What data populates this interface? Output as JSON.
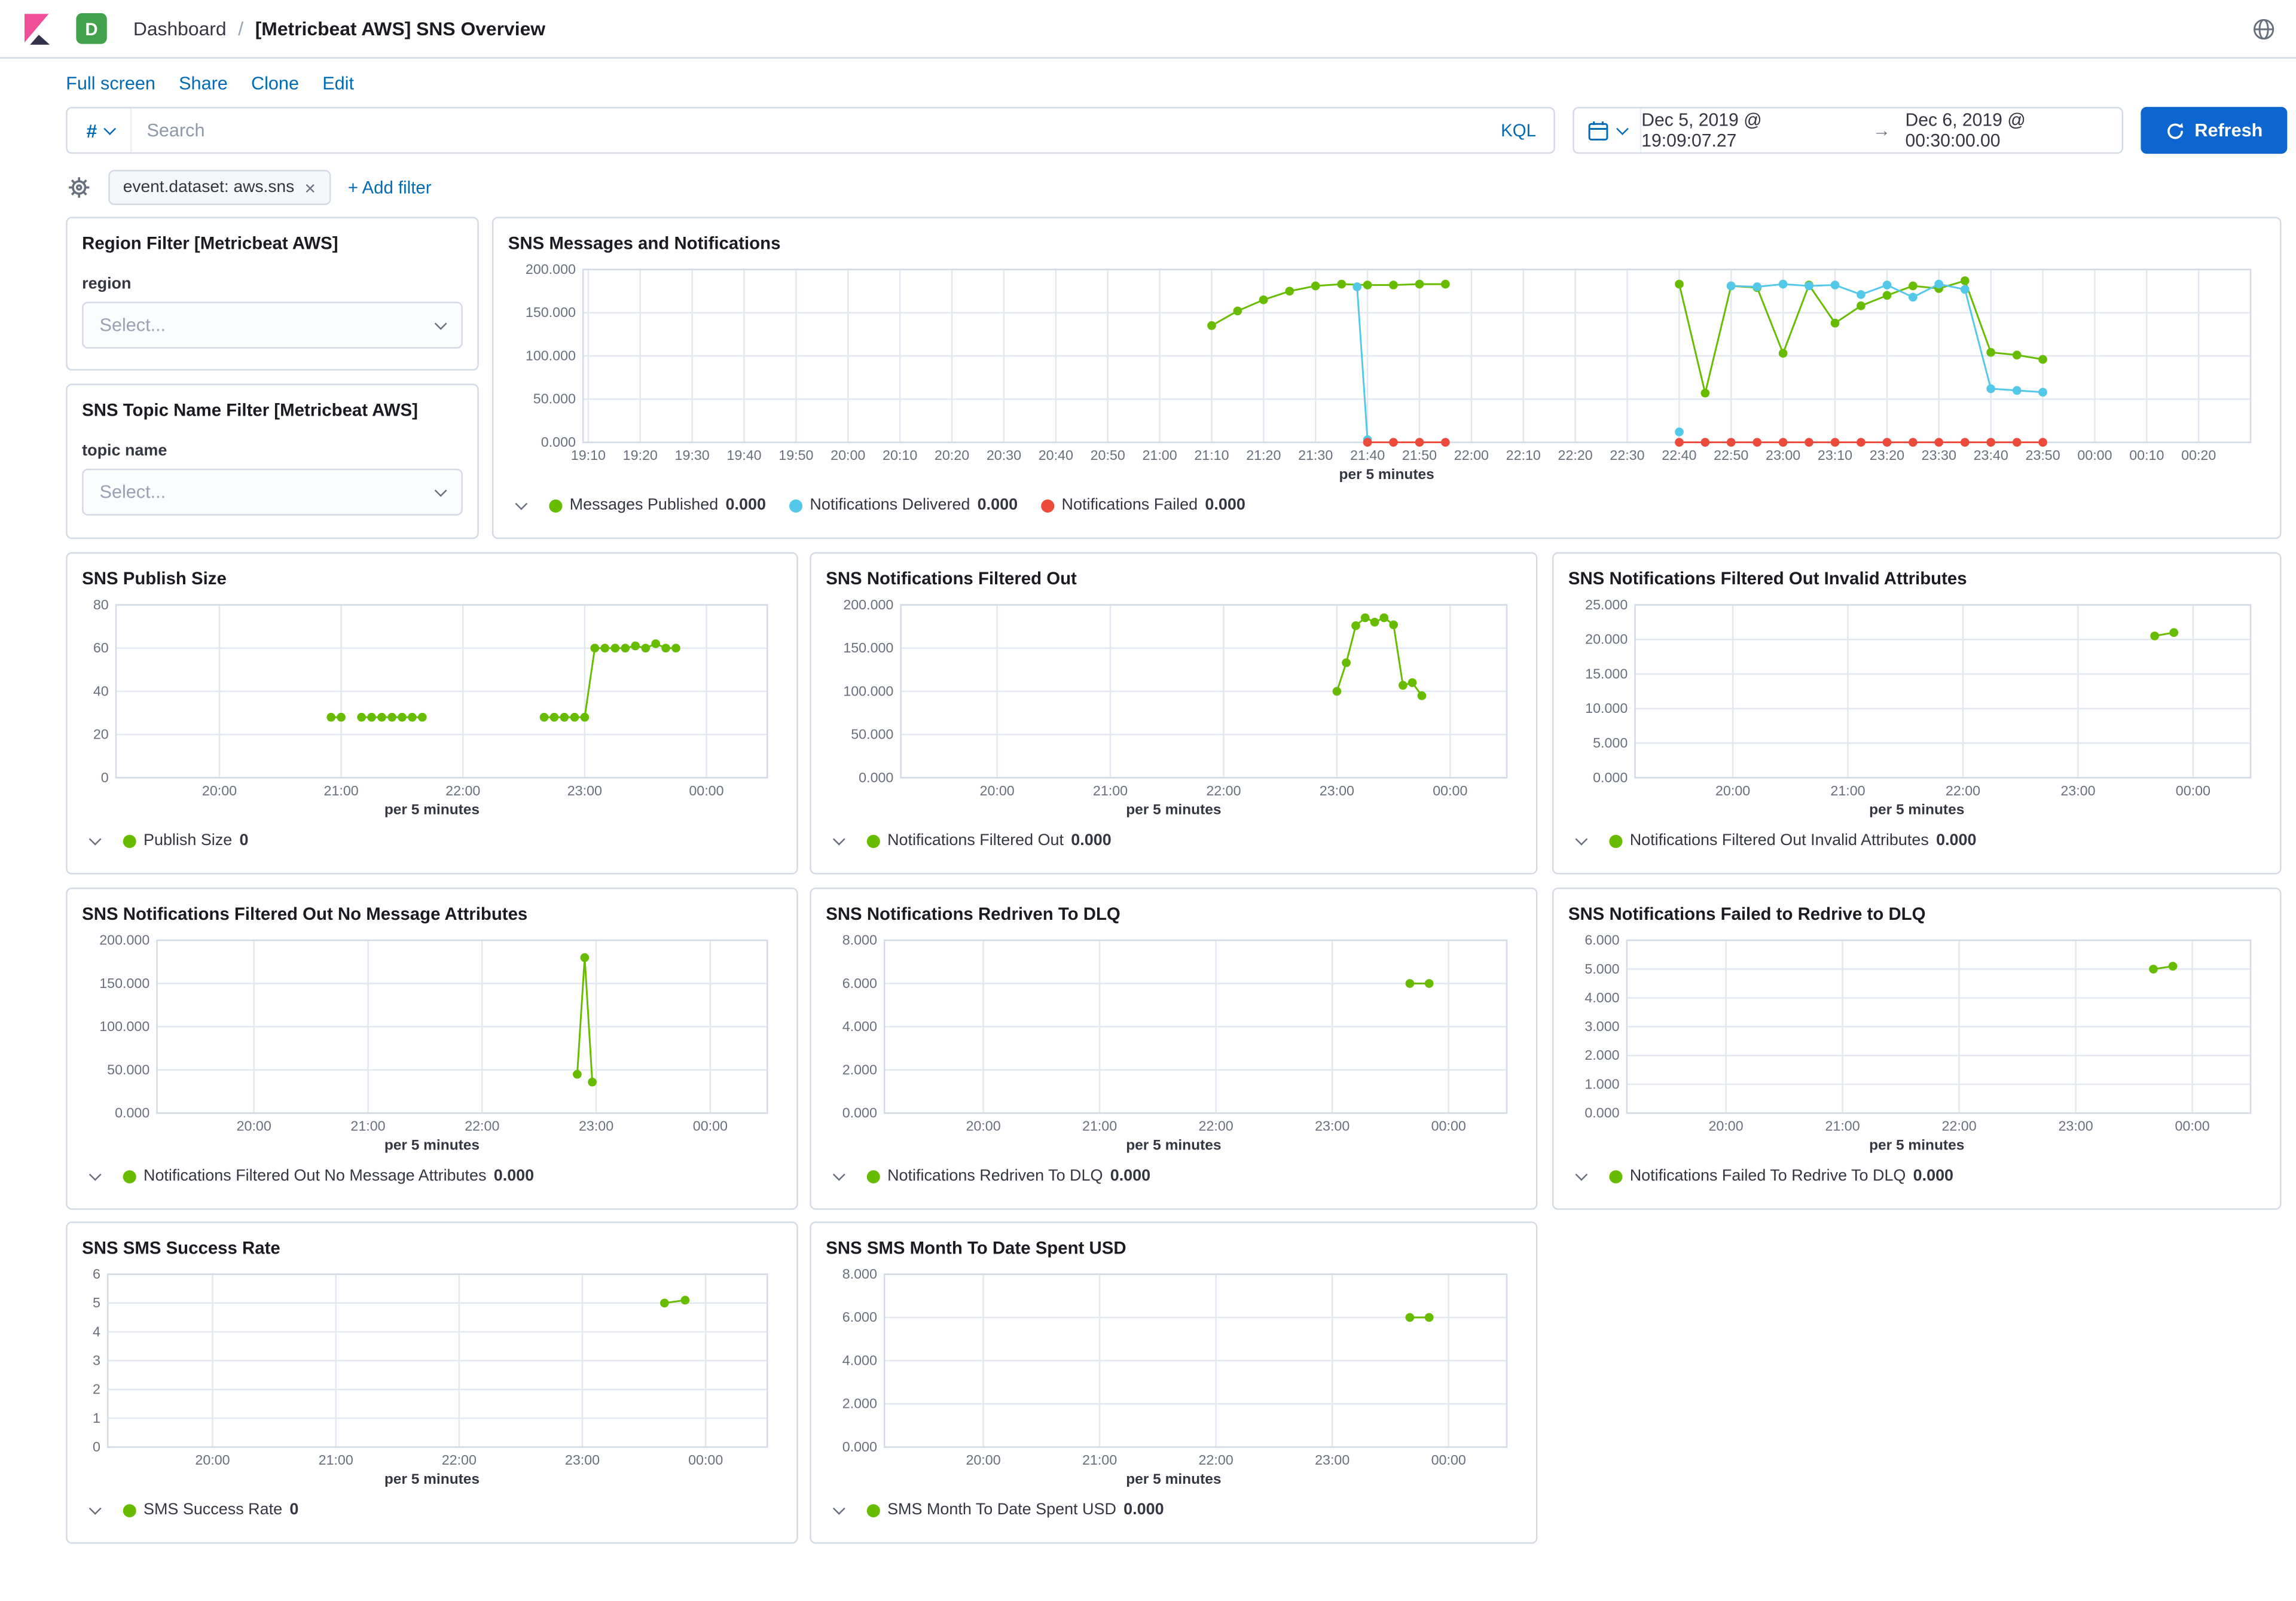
{
  "header": {
    "space_badge": "D",
    "breadcrumb_section": "Dashboard",
    "breadcrumb_separator": "/",
    "title": "[Metricbeat AWS] SNS Overview"
  },
  "nav_links": [
    "Full screen",
    "Share",
    "Clone",
    "Edit"
  ],
  "query_bar": {
    "filter_set_symbol": "#",
    "search_placeholder": "Search",
    "kql_label": "KQL",
    "date_start": "Dec 5, 2019 @ 19:09:07.27",
    "date_arrow": "→",
    "date_end": "Dec 6, 2019 @ 00:30:00.00",
    "refresh_label": "Refresh"
  },
  "filter_bar": {
    "pill": "event.dataset: aws.sns",
    "pill_close": "×",
    "add_filter": "+ Add filter"
  },
  "filter_panels": [
    {
      "title": "Region Filter [Metricbeat AWS]",
      "field_label": "region",
      "placeholder": "Select..."
    },
    {
      "title": "SNS Topic Name Filter [Metricbeat AWS]",
      "field_label": "topic name",
      "placeholder": "Select..."
    }
  ],
  "colors": {
    "link_blue": "#006BB4",
    "primary_button_blue": "#0D65D0",
    "series_green": "#68BC00",
    "series_blue": "#54C8E8",
    "series_red": "#EC4A3B",
    "space_badge_green": "#42A14D",
    "logo_pink": "#F04E98"
  },
  "chart_data": [
    {
      "title": "SNS Messages and Notifications",
      "type": "line",
      "xlabel": "per 5 minutes",
      "x_domain": [
        "19:09",
        "00:30"
      ],
      "x_ticks": [
        "19:10",
        "19:20",
        "19:30",
        "19:40",
        "19:50",
        "20:00",
        "20:10",
        "20:20",
        "20:30",
        "20:40",
        "20:50",
        "21:00",
        "21:10",
        "21:20",
        "21:30",
        "21:40",
        "21:50",
        "22:00",
        "22:10",
        "22:20",
        "22:30",
        "22:40",
        "22:50",
        "23:00",
        "23:10",
        "23:20",
        "23:30",
        "23:40",
        "23:50",
        "00:00",
        "00:10",
        "00:20"
      ],
      "ylim": [
        0,
        200
      ],
      "y_ticks": [
        "0.000",
        "50.000",
        "100.000",
        "150.000",
        "200.000"
      ],
      "legend_position": "bottom",
      "series": [
        {
          "name": "Messages Published",
          "value_label": "0.000",
          "color": "#68BC00",
          "points": [
            [
              "21:10",
              135
            ],
            [
              "21:15",
              152
            ],
            [
              "21:20",
              165
            ],
            [
              "21:25",
              175
            ],
            [
              "21:30",
              181
            ],
            [
              "21:35",
              183
            ],
            [
              "21:40",
              182
            ],
            [
              "21:45",
              182
            ],
            [
              "21:50",
              183
            ],
            [
              "21:55",
              183
            ],
            null,
            [
              "22:40",
              183
            ],
            [
              "22:45",
              57
            ],
            [
              "22:50",
              181
            ],
            [
              "22:55",
              179
            ],
            [
              "23:00",
              103
            ],
            [
              "23:05",
              182
            ],
            [
              "23:10",
              138
            ],
            [
              "23:15",
              158
            ],
            [
              "23:20",
              170
            ],
            [
              "23:25",
              181
            ],
            [
              "23:30",
              178
            ],
            [
              "23:35",
              187
            ],
            [
              "23:40",
              104
            ],
            [
              "23:45",
              101
            ],
            [
              "23:50",
              96
            ]
          ]
        },
        {
          "name": "Notifications Delivered",
          "value_label": "0.000",
          "color": "#54C8E8",
          "points": [
            [
              "21:38",
              180
            ],
            [
              "21:40",
              3
            ],
            null,
            [
              "22:40",
              12
            ],
            null,
            [
              "22:50",
              181
            ],
            [
              "22:55",
              180
            ],
            [
              "23:00",
              183
            ],
            [
              "23:05",
              181
            ],
            [
              "23:10",
              182
            ],
            [
              "23:15",
              171
            ],
            [
              "23:20",
              182
            ],
            [
              "23:25",
              168
            ],
            [
              "23:30",
              183
            ],
            [
              "23:35",
              177
            ],
            [
              "23:40",
              62
            ],
            [
              "23:45",
              60
            ],
            [
              "23:50",
              58
            ]
          ]
        },
        {
          "name": "Notifications Failed",
          "value_label": "0.000",
          "color": "#EC4A3B",
          "points": [
            [
              "21:40",
              0
            ],
            [
              "21:45",
              0
            ],
            [
              "21:50",
              0
            ],
            [
              "21:55",
              0
            ],
            null,
            [
              "22:40",
              0
            ],
            [
              "22:45",
              0
            ],
            [
              "22:50",
              0
            ],
            [
              "22:55",
              0
            ],
            [
              "23:00",
              0
            ],
            [
              "23:05",
              0
            ],
            [
              "23:10",
              0
            ],
            [
              "23:15",
              0
            ],
            [
              "23:20",
              0
            ],
            [
              "23:25",
              0
            ],
            [
              "23:30",
              0
            ],
            [
              "23:35",
              0
            ],
            [
              "23:40",
              0
            ],
            [
              "23:45",
              0
            ],
            [
              "23:50",
              0
            ]
          ]
        }
      ]
    },
    {
      "title": "SNS Publish Size",
      "type": "line",
      "xlabel": "per 5 minutes",
      "x_domain": [
        "19:09",
        "00:30"
      ],
      "x_ticks": [
        "20:00",
        "21:00",
        "22:00",
        "23:00",
        "00:00"
      ],
      "ylim": [
        0,
        80
      ],
      "y_ticks": [
        "0",
        "20",
        "40",
        "60",
        "80"
      ],
      "legend_position": "bottom",
      "series": [
        {
          "name": "Publish Size",
          "value_label": "0",
          "color": "#68BC00",
          "points": [
            [
              "20:55",
              28
            ],
            [
              "21:00",
              28
            ],
            null,
            [
              "21:10",
              28
            ],
            [
              "21:15",
              28
            ],
            [
              "21:20",
              28
            ],
            [
              "21:25",
              28
            ],
            [
              "21:30",
              28
            ],
            [
              "21:35",
              28
            ],
            [
              "21:40",
              28
            ],
            null,
            [
              "22:40",
              28
            ],
            [
              "22:45",
              28
            ],
            [
              "22:50",
              28
            ],
            [
              "22:55",
              28
            ],
            [
              "23:00",
              28
            ],
            [
              "23:05",
              60
            ],
            [
              "23:10",
              60
            ],
            [
              "23:15",
              60
            ],
            [
              "23:20",
              60
            ],
            [
              "23:25",
              61
            ],
            [
              "23:30",
              60
            ],
            [
              "23:35",
              62
            ],
            [
              "23:40",
              60
            ],
            [
              "23:45",
              60
            ]
          ]
        }
      ]
    },
    {
      "title": "SNS Notifications Filtered Out",
      "type": "line",
      "xlabel": "per 5 minutes",
      "x_domain": [
        "19:09",
        "00:30"
      ],
      "x_ticks": [
        "20:00",
        "21:00",
        "22:00",
        "23:00",
        "00:00"
      ],
      "ylim": [
        0,
        200
      ],
      "y_ticks": [
        "0.000",
        "50.000",
        "100.000",
        "150.000",
        "200.000"
      ],
      "legend_position": "bottom",
      "series": [
        {
          "name": "Notifications Filtered Out",
          "value_label": "0.000",
          "color": "#68BC00",
          "points": [
            [
              "23:00",
              100
            ],
            [
              "23:05",
              133
            ],
            [
              "23:10",
              176
            ],
            [
              "23:15",
              185
            ],
            [
              "23:20",
              180
            ],
            [
              "23:25",
              185
            ],
            [
              "23:30",
              177
            ],
            [
              "23:35",
              107
            ],
            [
              "23:40",
              110
            ],
            [
              "23:45",
              95
            ]
          ]
        }
      ]
    },
    {
      "title": "SNS Notifications Filtered Out Invalid Attributes",
      "type": "line",
      "xlabel": "per 5 minutes",
      "x_domain": [
        "19:09",
        "00:30"
      ],
      "x_ticks": [
        "20:00",
        "21:00",
        "22:00",
        "23:00",
        "00:00"
      ],
      "ylim": [
        0,
        25
      ],
      "y_ticks": [
        "0.000",
        "5.000",
        "10.000",
        "15.000",
        "20.000",
        "25.000"
      ],
      "legend_position": "bottom",
      "series": [
        {
          "name": "Notifications Filtered Out Invalid Attributes",
          "value_label": "0.000",
          "color": "#68BC00",
          "points": [
            [
              "23:40",
              20.5
            ],
            [
              "23:50",
              21
            ]
          ]
        }
      ]
    },
    {
      "title": "SNS Notifications Filtered Out No Message Attributes",
      "type": "line",
      "xlabel": "per 5 minutes",
      "x_domain": [
        "19:09",
        "00:30"
      ],
      "x_ticks": [
        "20:00",
        "21:00",
        "22:00",
        "23:00",
        "00:00"
      ],
      "ylim": [
        0,
        200
      ],
      "y_ticks": [
        "0.000",
        "50.000",
        "100.000",
        "150.000",
        "200.000"
      ],
      "legend_position": "bottom",
      "series": [
        {
          "name": "Notifications Filtered Out No Message Attributes",
          "value_label": "0.000",
          "color": "#68BC00",
          "points": [
            [
              "22:50",
              45
            ],
            [
              "22:54",
              180
            ],
            [
              "22:58",
              36
            ]
          ]
        }
      ]
    },
    {
      "title": "SNS Notifications Redriven To DLQ",
      "type": "line",
      "xlabel": "per 5 minutes",
      "x_domain": [
        "19:09",
        "00:30"
      ],
      "x_ticks": [
        "20:00",
        "21:00",
        "22:00",
        "23:00",
        "00:00"
      ],
      "ylim": [
        0,
        8
      ],
      "y_ticks": [
        "0.000",
        "2.000",
        "4.000",
        "6.000",
        "8.000"
      ],
      "legend_position": "bottom",
      "series": [
        {
          "name": "Notifications Redriven To DLQ",
          "value_label": "0.000",
          "color": "#68BC00",
          "points": [
            [
              "23:40",
              6
            ],
            [
              "23:50",
              6
            ]
          ]
        }
      ]
    },
    {
      "title": "SNS Notifications Failed to Redrive to DLQ",
      "type": "line",
      "xlabel": "per 5 minutes",
      "x_domain": [
        "19:09",
        "00:30"
      ],
      "x_ticks": [
        "20:00",
        "21:00",
        "22:00",
        "23:00",
        "00:00"
      ],
      "ylim": [
        0,
        6
      ],
      "y_ticks": [
        "0.000",
        "1.000",
        "2.000",
        "3.000",
        "4.000",
        "5.000",
        "6.000"
      ],
      "legend_position": "bottom",
      "series": [
        {
          "name": "Notifications Failed To Redrive To DLQ",
          "value_label": "0.000",
          "color": "#68BC00",
          "points": [
            [
              "23:40",
              5
            ],
            [
              "23:50",
              5.1
            ]
          ]
        }
      ]
    },
    {
      "title": "SNS SMS Success Rate",
      "type": "line",
      "xlabel": "per 5 minutes",
      "x_domain": [
        "19:09",
        "00:30"
      ],
      "x_ticks": [
        "20:00",
        "21:00",
        "22:00",
        "23:00",
        "00:00"
      ],
      "ylim": [
        0,
        6
      ],
      "y_ticks": [
        "0",
        "1",
        "2",
        "3",
        "4",
        "5",
        "6"
      ],
      "legend_position": "bottom",
      "series": [
        {
          "name": "SMS Success Rate",
          "value_label": "0",
          "color": "#68BC00",
          "points": [
            [
              "23:40",
              5
            ],
            [
              "23:50",
              5.1
            ]
          ]
        }
      ]
    },
    {
      "title": "SNS SMS Month To Date Spent USD",
      "type": "line",
      "xlabel": "per 5 minutes",
      "x_domain": [
        "19:09",
        "00:30"
      ],
      "x_ticks": [
        "20:00",
        "21:00",
        "22:00",
        "23:00",
        "00:00"
      ],
      "ylim": [
        0,
        8
      ],
      "y_ticks": [
        "0.000",
        "2.000",
        "4.000",
        "6.000",
        "8.000"
      ],
      "legend_position": "bottom",
      "series": [
        {
          "name": "SMS Month To Date Spent USD",
          "value_label": "0.000",
          "color": "#68BC00",
          "points": [
            [
              "23:40",
              6
            ],
            [
              "23:50",
              6
            ]
          ]
        }
      ]
    }
  ]
}
